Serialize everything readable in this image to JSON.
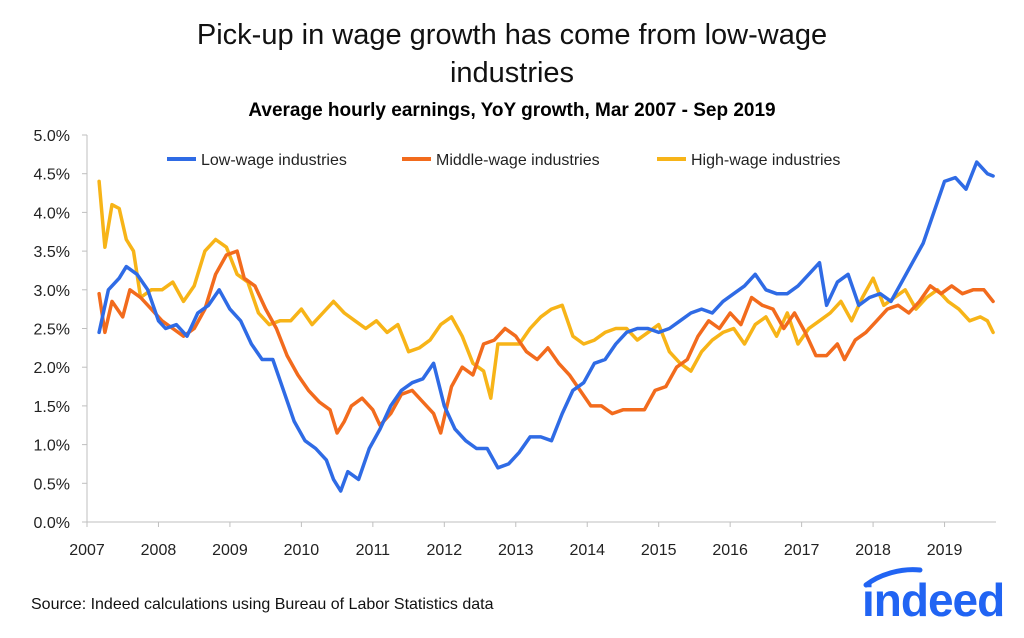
{
  "chart_data": {
    "type": "line",
    "title": "Pick-up in wage growth has come from low-wage industries",
    "title_lines": [
      "Pick-up in wage growth has come from low-wage",
      "industries"
    ],
    "subtitle": "Average hourly earnings, YoY growth, Mar 2007 - Sep 2019",
    "xlabel": "",
    "ylabel": "",
    "x_start": "Mar 2007",
    "x_end": "Sep 2019",
    "xlim": [
      2007.0,
      2019.72
    ],
    "ylim": [
      0,
      5
    ],
    "x_ticks": [
      "2007",
      "2008",
      "2009",
      "2010",
      "2011",
      "2012",
      "2013",
      "2014",
      "2015",
      "2016",
      "2017",
      "2018",
      "2019"
    ],
    "y_ticks": [
      "0.0%",
      "0.5%",
      "1.0%",
      "1.5%",
      "2.0%",
      "2.5%",
      "3.0%",
      "3.5%",
      "4.0%",
      "4.5%",
      "5.0%"
    ],
    "legend_position": "top-center",
    "series": [
      {
        "name": "Low-wage industries",
        "color": "#2f6be5",
        "points": [
          [
            2007.17,
            2.45
          ],
          [
            2007.3,
            3.0
          ],
          [
            2007.45,
            3.15
          ],
          [
            2007.55,
            3.3
          ],
          [
            2007.7,
            3.2
          ],
          [
            2007.85,
            3.0
          ],
          [
            2008.0,
            2.6
          ],
          [
            2008.1,
            2.5
          ],
          [
            2008.25,
            2.55
          ],
          [
            2008.4,
            2.4
          ],
          [
            2008.55,
            2.7
          ],
          [
            2008.7,
            2.8
          ],
          [
            2008.85,
            3.0
          ],
          [
            2009.0,
            2.75
          ],
          [
            2009.15,
            2.6
          ],
          [
            2009.3,
            2.3
          ],
          [
            2009.45,
            2.1
          ],
          [
            2009.6,
            2.1
          ],
          [
            2009.75,
            1.7
          ],
          [
            2009.9,
            1.3
          ],
          [
            2010.05,
            1.05
          ],
          [
            2010.2,
            0.95
          ],
          [
            2010.35,
            0.8
          ],
          [
            2010.45,
            0.55
          ],
          [
            2010.55,
            0.4
          ],
          [
            2010.65,
            0.65
          ],
          [
            2010.8,
            0.55
          ],
          [
            2010.95,
            0.95
          ],
          [
            2011.1,
            1.2
          ],
          [
            2011.25,
            1.5
          ],
          [
            2011.4,
            1.7
          ],
          [
            2011.55,
            1.8
          ],
          [
            2011.7,
            1.85
          ],
          [
            2011.85,
            2.05
          ],
          [
            2012.0,
            1.5
          ],
          [
            2012.15,
            1.2
          ],
          [
            2012.3,
            1.05
          ],
          [
            2012.45,
            0.95
          ],
          [
            2012.6,
            0.95
          ],
          [
            2012.75,
            0.7
          ],
          [
            2012.9,
            0.75
          ],
          [
            2013.05,
            0.9
          ],
          [
            2013.2,
            1.1
          ],
          [
            2013.35,
            1.1
          ],
          [
            2013.5,
            1.05
          ],
          [
            2013.65,
            1.4
          ],
          [
            2013.8,
            1.7
          ],
          [
            2013.95,
            1.8
          ],
          [
            2014.1,
            2.05
          ],
          [
            2014.25,
            2.1
          ],
          [
            2014.4,
            2.3
          ],
          [
            2014.55,
            2.45
          ],
          [
            2014.7,
            2.5
          ],
          [
            2014.85,
            2.5
          ],
          [
            2015.0,
            2.45
          ],
          [
            2015.15,
            2.5
          ],
          [
            2015.3,
            2.6
          ],
          [
            2015.45,
            2.7
          ],
          [
            2015.6,
            2.75
          ],
          [
            2015.75,
            2.7
          ],
          [
            2015.9,
            2.85
          ],
          [
            2016.05,
            2.95
          ],
          [
            2016.2,
            3.05
          ],
          [
            2016.35,
            3.2
          ],
          [
            2016.5,
            3.0
          ],
          [
            2016.65,
            2.95
          ],
          [
            2016.8,
            2.95
          ],
          [
            2016.95,
            3.05
          ],
          [
            2017.1,
            3.2
          ],
          [
            2017.25,
            3.35
          ],
          [
            2017.35,
            2.8
          ],
          [
            2017.5,
            3.1
          ],
          [
            2017.65,
            3.2
          ],
          [
            2017.8,
            2.8
          ],
          [
            2017.95,
            2.9
          ],
          [
            2018.1,
            2.95
          ],
          [
            2018.25,
            2.85
          ],
          [
            2018.4,
            3.1
          ],
          [
            2018.55,
            3.35
          ],
          [
            2018.7,
            3.6
          ],
          [
            2018.85,
            4.0
          ],
          [
            2019.0,
            4.4
          ],
          [
            2019.15,
            4.45
          ],
          [
            2019.3,
            4.3
          ],
          [
            2019.45,
            4.65
          ],
          [
            2019.6,
            4.5
          ],
          [
            2019.68,
            4.47
          ]
        ]
      },
      {
        "name": "Middle-wage industries",
        "color": "#f26b1d",
        "points": [
          [
            2007.17,
            2.95
          ],
          [
            2007.25,
            2.45
          ],
          [
            2007.35,
            2.85
          ],
          [
            2007.5,
            2.65
          ],
          [
            2007.6,
            3.0
          ],
          [
            2007.75,
            2.9
          ],
          [
            2007.9,
            2.75
          ],
          [
            2008.05,
            2.6
          ],
          [
            2008.2,
            2.5
          ],
          [
            2008.35,
            2.4
          ],
          [
            2008.5,
            2.5
          ],
          [
            2008.65,
            2.75
          ],
          [
            2008.8,
            3.2
          ],
          [
            2008.95,
            3.45
          ],
          [
            2009.1,
            3.5
          ],
          [
            2009.2,
            3.15
          ],
          [
            2009.35,
            3.05
          ],
          [
            2009.5,
            2.75
          ],
          [
            2009.65,
            2.5
          ],
          [
            2009.8,
            2.15
          ],
          [
            2009.95,
            1.9
          ],
          [
            2010.1,
            1.7
          ],
          [
            2010.25,
            1.55
          ],
          [
            2010.4,
            1.45
          ],
          [
            2010.5,
            1.15
          ],
          [
            2010.6,
            1.3
          ],
          [
            2010.7,
            1.5
          ],
          [
            2010.85,
            1.6
          ],
          [
            2011.0,
            1.45
          ],
          [
            2011.1,
            1.25
          ],
          [
            2011.25,
            1.4
          ],
          [
            2011.4,
            1.65
          ],
          [
            2011.55,
            1.7
          ],
          [
            2011.7,
            1.55
          ],
          [
            2011.85,
            1.4
          ],
          [
            2011.95,
            1.15
          ],
          [
            2012.1,
            1.75
          ],
          [
            2012.25,
            2.0
          ],
          [
            2012.4,
            1.9
          ],
          [
            2012.55,
            2.3
          ],
          [
            2012.7,
            2.35
          ],
          [
            2012.85,
            2.5
          ],
          [
            2013.0,
            2.4
          ],
          [
            2013.15,
            2.2
          ],
          [
            2013.3,
            2.1
          ],
          [
            2013.45,
            2.25
          ],
          [
            2013.6,
            2.05
          ],
          [
            2013.75,
            1.9
          ],
          [
            2013.9,
            1.7
          ],
          [
            2014.05,
            1.5
          ],
          [
            2014.2,
            1.5
          ],
          [
            2014.35,
            1.4
          ],
          [
            2014.5,
            1.45
          ],
          [
            2014.65,
            1.45
          ],
          [
            2014.8,
            1.45
          ],
          [
            2014.95,
            1.7
          ],
          [
            2015.1,
            1.75
          ],
          [
            2015.25,
            2.0
          ],
          [
            2015.4,
            2.1
          ],
          [
            2015.55,
            2.4
          ],
          [
            2015.7,
            2.6
          ],
          [
            2015.85,
            2.5
          ],
          [
            2016.0,
            2.7
          ],
          [
            2016.15,
            2.55
          ],
          [
            2016.3,
            2.9
          ],
          [
            2016.45,
            2.8
          ],
          [
            2016.6,
            2.75
          ],
          [
            2016.75,
            2.5
          ],
          [
            2016.9,
            2.7
          ],
          [
            2017.05,
            2.45
          ],
          [
            2017.2,
            2.15
          ],
          [
            2017.35,
            2.15
          ],
          [
            2017.5,
            2.3
          ],
          [
            2017.6,
            2.1
          ],
          [
            2017.75,
            2.35
          ],
          [
            2017.9,
            2.45
          ],
          [
            2018.05,
            2.6
          ],
          [
            2018.2,
            2.75
          ],
          [
            2018.35,
            2.8
          ],
          [
            2018.5,
            2.7
          ],
          [
            2018.65,
            2.85
          ],
          [
            2018.8,
            3.05
          ],
          [
            2018.95,
            2.95
          ],
          [
            2019.1,
            3.05
          ],
          [
            2019.25,
            2.95
          ],
          [
            2019.4,
            3.0
          ],
          [
            2019.55,
            3.0
          ],
          [
            2019.68,
            2.85
          ]
        ]
      },
      {
        "name": "High-wage industries",
        "color": "#f7b418",
        "points": [
          [
            2007.17,
            4.4
          ],
          [
            2007.25,
            3.55
          ],
          [
            2007.35,
            4.1
          ],
          [
            2007.45,
            4.05
          ],
          [
            2007.55,
            3.65
          ],
          [
            2007.65,
            3.5
          ],
          [
            2007.75,
            2.9
          ],
          [
            2007.9,
            3.0
          ],
          [
            2008.05,
            3.0
          ],
          [
            2008.2,
            3.1
          ],
          [
            2008.35,
            2.85
          ],
          [
            2008.5,
            3.05
          ],
          [
            2008.65,
            3.5
          ],
          [
            2008.8,
            3.65
          ],
          [
            2008.95,
            3.55
          ],
          [
            2009.1,
            3.2
          ],
          [
            2009.25,
            3.1
          ],
          [
            2009.4,
            2.7
          ],
          [
            2009.55,
            2.55
          ],
          [
            2009.7,
            2.6
          ],
          [
            2009.85,
            2.6
          ],
          [
            2010.0,
            2.75
          ],
          [
            2010.15,
            2.55
          ],
          [
            2010.3,
            2.7
          ],
          [
            2010.45,
            2.85
          ],
          [
            2010.6,
            2.7
          ],
          [
            2010.75,
            2.6
          ],
          [
            2010.9,
            2.5
          ],
          [
            2011.05,
            2.6
          ],
          [
            2011.2,
            2.45
          ],
          [
            2011.35,
            2.55
          ],
          [
            2011.5,
            2.2
          ],
          [
            2011.65,
            2.25
          ],
          [
            2011.8,
            2.35
          ],
          [
            2011.95,
            2.55
          ],
          [
            2012.1,
            2.65
          ],
          [
            2012.25,
            2.4
          ],
          [
            2012.4,
            2.05
          ],
          [
            2012.55,
            1.95
          ],
          [
            2012.65,
            1.6
          ],
          [
            2012.75,
            2.3
          ],
          [
            2012.9,
            2.3
          ],
          [
            2013.05,
            2.3
          ],
          [
            2013.2,
            2.5
          ],
          [
            2013.35,
            2.65
          ],
          [
            2013.5,
            2.75
          ],
          [
            2013.65,
            2.8
          ],
          [
            2013.8,
            2.4
          ],
          [
            2013.95,
            2.3
          ],
          [
            2014.1,
            2.35
          ],
          [
            2014.25,
            2.45
          ],
          [
            2014.4,
            2.5
          ],
          [
            2014.55,
            2.5
          ],
          [
            2014.7,
            2.35
          ],
          [
            2014.85,
            2.45
          ],
          [
            2015.0,
            2.55
          ],
          [
            2015.15,
            2.2
          ],
          [
            2015.3,
            2.05
          ],
          [
            2015.45,
            1.95
          ],
          [
            2015.6,
            2.2
          ],
          [
            2015.75,
            2.35
          ],
          [
            2015.9,
            2.45
          ],
          [
            2016.05,
            2.5
          ],
          [
            2016.2,
            2.3
          ],
          [
            2016.35,
            2.55
          ],
          [
            2016.5,
            2.65
          ],
          [
            2016.65,
            2.4
          ],
          [
            2016.8,
            2.7
          ],
          [
            2016.95,
            2.3
          ],
          [
            2017.1,
            2.5
          ],
          [
            2017.25,
            2.6
          ],
          [
            2017.4,
            2.7
          ],
          [
            2017.55,
            2.85
          ],
          [
            2017.7,
            2.6
          ],
          [
            2017.85,
            2.9
          ],
          [
            2018.0,
            3.15
          ],
          [
            2018.15,
            2.8
          ],
          [
            2018.3,
            2.9
          ],
          [
            2018.45,
            3.0
          ],
          [
            2018.6,
            2.75
          ],
          [
            2018.75,
            2.9
          ],
          [
            2018.9,
            3.0
          ],
          [
            2019.05,
            2.85
          ],
          [
            2019.2,
            2.75
          ],
          [
            2019.35,
            2.6
          ],
          [
            2019.5,
            2.65
          ],
          [
            2019.6,
            2.6
          ],
          [
            2019.68,
            2.45
          ]
        ]
      }
    ]
  },
  "footer": {
    "source": "Source: Indeed calculations using Bureau of Labor Statistics data",
    "logo": "indeed"
  }
}
